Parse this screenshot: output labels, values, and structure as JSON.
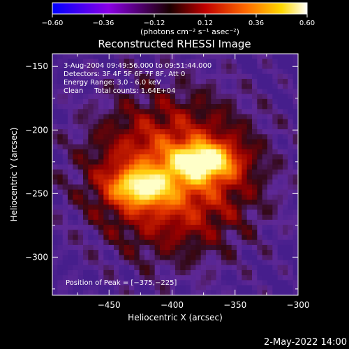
{
  "colorbar": {
    "min": -0.6,
    "max": 0.6,
    "tick_labels": [
      "−0.60",
      "−0.36",
      "−0.12",
      "0.12",
      "0.36",
      "0.60"
    ],
    "tick_values": [
      -0.6,
      -0.36,
      -0.12,
      0.12,
      0.36,
      0.6
    ],
    "units_label": "(photons cm⁻² s⁻¹ asec⁻²)",
    "colors": [
      "#0000ff",
      "#8a00e6",
      "#1a0000",
      "#c00000",
      "#ff6a00",
      "#ffd800",
      "#ffffff"
    ]
  },
  "chart_data": {
    "type": "heatmap",
    "title": "Reconstructed RHESSI Image",
    "xlabel": "Heliocentric X (arcsec)",
    "ylabel": "Heliocentric Y (arcsec)",
    "xlim": [
      -495,
      -300
    ],
    "ylim": [
      -330,
      -140
    ],
    "x_ticks": [
      -450,
      -400,
      -350,
      -300
    ],
    "x_tick_labels": [
      "−450",
      "−400",
      "−350",
      "−300"
    ],
    "y_ticks": [
      -150,
      -200,
      -250,
      -300
    ],
    "y_tick_labels": [
      "−150",
      "−200",
      "−250",
      "−300"
    ],
    "annotations": [
      "3-Aug-2004 09:49:56.000 to 09:51:44.000",
      "Detectors: 3F 4F 5F 6F 7F 8F, Att 0",
      "Energy Range: 3.0 - 6.0 keV",
      "Clean     Total counts: 1.64E+04"
    ],
    "peak_label": "Position of Peak = [−375,−225]",
    "peak": [
      -375,
      -225
    ],
    "sources": [
      {
        "x": -375,
        "y": -225,
        "peak": 0.6
      },
      {
        "x": -425,
        "y": -245,
        "peak": 0.48
      }
    ],
    "colormap": "rhessi-blue-purple-red-yellow-white"
  },
  "footer": {
    "date": "2-May-2022 14:00"
  }
}
